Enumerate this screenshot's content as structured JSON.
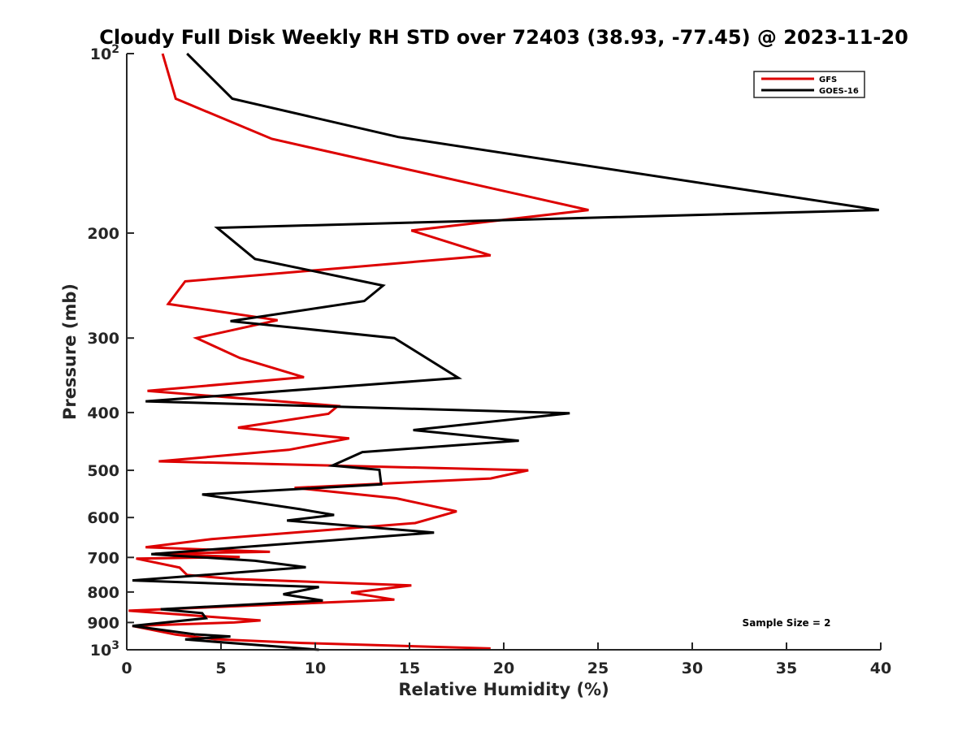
{
  "chart_data": {
    "type": "line",
    "title": "Cloudy Full Disk Weekly RH STD over 72403 (38.93, -77.45) @ 2023-11-20",
    "xlabel": "Relative Humidity (%)",
    "ylabel": "Pressure (mb)",
    "xlim": [
      0,
      40
    ],
    "ylim": [
      100,
      1000
    ],
    "y_scale": "log",
    "y_reversed": true,
    "x_ticks": [
      0,
      5,
      10,
      15,
      20,
      25,
      30,
      35,
      40
    ],
    "y_ticks": [
      {
        "value": 100,
        "label": "10",
        "exp": "2"
      },
      {
        "value": 200,
        "label": "200"
      },
      {
        "value": 300,
        "label": "300"
      },
      {
        "value": 400,
        "label": "400"
      },
      {
        "value": 500,
        "label": "500"
      },
      {
        "value": 600,
        "label": "600"
      },
      {
        "value": 700,
        "label": "700"
      },
      {
        "value": 800,
        "label": "800"
      },
      {
        "value": 900,
        "label": "900"
      },
      {
        "value": 1000,
        "label": "10",
        "exp": "3"
      }
    ],
    "grid": false,
    "legend_position": "top-right",
    "annotation": "Sample Size = 2",
    "series": [
      {
        "name": "GFS",
        "color": "#dd0000",
        "points": [
          [
            1.9,
            100
          ],
          [
            2.6,
            119
          ],
          [
            7.7,
            139
          ],
          [
            24.5,
            183
          ],
          [
            15.1,
            198
          ],
          [
            19.3,
            218
          ],
          [
            3.1,
            241
          ],
          [
            2.2,
            263
          ],
          [
            8.0,
            280
          ],
          [
            3.7,
            300
          ],
          [
            6.0,
            324
          ],
          [
            9.4,
            349
          ],
          [
            1.1,
            368
          ],
          [
            11.2,
            390
          ],
          [
            10.7,
            402
          ],
          [
            5.9,
            424
          ],
          [
            11.8,
            442
          ],
          [
            8.6,
            462
          ],
          [
            1.7,
            483
          ],
          [
            21.3,
            500
          ],
          [
            19.3,
            516
          ],
          [
            8.9,
            535
          ],
          [
            14.3,
            557
          ],
          [
            17.5,
            586
          ],
          [
            15.3,
            613
          ],
          [
            4.5,
            652
          ],
          [
            1.0,
            673
          ],
          [
            7.6,
            685
          ],
          [
            1.5,
            690
          ],
          [
            6.0,
            699
          ],
          [
            0.5,
            703
          ],
          [
            2.8,
            728
          ],
          [
            3.2,
            749
          ],
          [
            5.7,
            761
          ],
          [
            15.1,
            780
          ],
          [
            11.9,
            802
          ],
          [
            14.2,
            824
          ],
          [
            0.1,
            860
          ],
          [
            7.1,
            893
          ],
          [
            5.7,
            900
          ],
          [
            0.3,
            912
          ],
          [
            2.6,
            943
          ],
          [
            4.7,
            960
          ],
          [
            9.3,
            974
          ],
          [
            19.3,
            995
          ]
        ]
      },
      {
        "name": "GOES-16",
        "color": "#000000",
        "points": [
          [
            3.2,
            100
          ],
          [
            5.6,
            119
          ],
          [
            14.4,
            138
          ],
          [
            39.9,
            183
          ],
          [
            4.8,
            196
          ],
          [
            6.8,
            221
          ],
          [
            13.6,
            245
          ],
          [
            12.6,
            260
          ],
          [
            5.5,
            281
          ],
          [
            14.2,
            300
          ],
          [
            17.6,
            350
          ],
          [
            1.0,
            383
          ],
          [
            23.5,
            401
          ],
          [
            15.2,
            428
          ],
          [
            20.8,
            446
          ],
          [
            12.5,
            466
          ],
          [
            10.9,
            491
          ],
          [
            13.4,
            499
          ],
          [
            13.5,
            528
          ],
          [
            4.0,
            549
          ],
          [
            9.2,
            581
          ],
          [
            11.0,
            594
          ],
          [
            8.5,
            607
          ],
          [
            16.3,
            636
          ],
          [
            1.3,
            691
          ],
          [
            6.8,
            709
          ],
          [
            9.5,
            727
          ],
          [
            0.3,
            765
          ],
          [
            10.2,
            785
          ],
          [
            8.3,
            807
          ],
          [
            10.4,
            827
          ],
          [
            1.8,
            855
          ],
          [
            4.0,
            868
          ],
          [
            4.2,
            885
          ],
          [
            0.3,
            912
          ],
          [
            3.6,
            942
          ],
          [
            5.5,
            950
          ],
          [
            3.1,
            961
          ],
          [
            10.2,
            1000
          ]
        ]
      }
    ]
  }
}
